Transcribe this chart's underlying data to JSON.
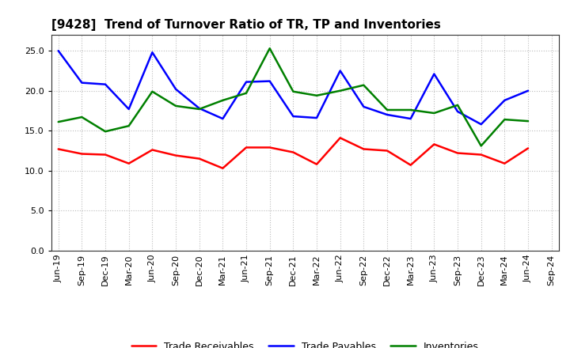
{
  "title": "[9428]  Trend of Turnover Ratio of TR, TP and Inventories",
  "ylim": [
    0.0,
    27.0
  ],
  "yticks": [
    0.0,
    5.0,
    10.0,
    15.0,
    20.0,
    25.0
  ],
  "x_labels": [
    "Jun-19",
    "Sep-19",
    "Dec-19",
    "Mar-20",
    "Jun-20",
    "Sep-20",
    "Dec-20",
    "Mar-21",
    "Jun-21",
    "Sep-21",
    "Dec-21",
    "Mar-22",
    "Jun-22",
    "Sep-22",
    "Dec-22",
    "Mar-23",
    "Jun-23",
    "Sep-23",
    "Dec-23",
    "Mar-24",
    "Jun-24",
    "Sep-24"
  ],
  "trade_receivables": [
    12.7,
    12.1,
    12.0,
    10.9,
    12.6,
    11.9,
    11.5,
    10.3,
    12.9,
    12.9,
    12.3,
    10.8,
    14.1,
    12.7,
    12.5,
    10.7,
    13.3,
    12.2,
    12.0,
    10.9,
    12.8,
    null
  ],
  "trade_payables": [
    25.0,
    21.0,
    20.8,
    17.7,
    24.8,
    20.2,
    17.8,
    16.5,
    21.1,
    21.2,
    16.8,
    16.6,
    22.5,
    18.0,
    17.0,
    16.5,
    22.1,
    17.4,
    15.8,
    18.8,
    20.0,
    null
  ],
  "inventories": [
    16.1,
    16.7,
    14.9,
    15.6,
    19.9,
    18.1,
    17.7,
    18.8,
    19.7,
    25.3,
    19.9,
    19.4,
    20.0,
    20.7,
    17.6,
    17.6,
    17.2,
    18.2,
    13.1,
    16.4,
    16.2,
    null
  ],
  "tr_color": "#ff0000",
  "tp_color": "#0000ff",
  "inv_color": "#008000",
  "legend_labels": [
    "Trade Receivables",
    "Trade Payables",
    "Inventories"
  ],
  "background_color": "#ffffff",
  "grid_color": "#bbbbbb",
  "title_fontsize": 11,
  "tick_fontsize": 8,
  "legend_fontsize": 9,
  "line_width": 1.8
}
